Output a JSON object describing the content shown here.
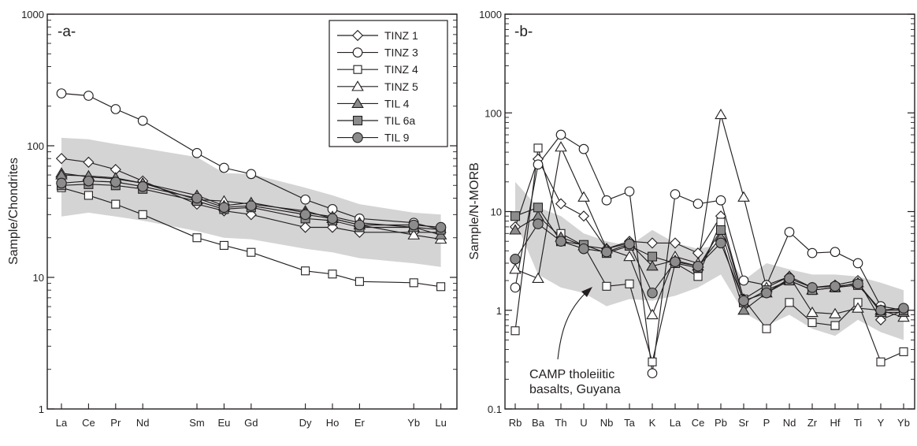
{
  "colors": {
    "band": "#d4d4d4",
    "line": "#231f20",
    "filled": "#8c8c8c",
    "open": "#ffffff"
  },
  "chart_data": [
    {
      "type": "line",
      "panel_label": "-a-",
      "xlabel": "",
      "ylabel": "Sample/Chondrites",
      "y_scale": "log",
      "ylim": [
        1,
        1000
      ],
      "yticks": [
        "1",
        "10",
        "100",
        "1000"
      ],
      "categories": [
        "La",
        "Ce",
        "Pr",
        "Nd",
        "Sm",
        "Eu",
        "Gd",
        "Dy",
        "Ho",
        "Er",
        "Yb",
        "Lu"
      ],
      "category_positions": [
        0,
        1,
        2,
        3,
        5,
        6,
        7,
        9,
        10,
        11,
        13,
        14
      ],
      "legend_placement": "top-right",
      "series": [
        {
          "name": "TINZ 1",
          "marker": "diamond",
          "fill": "open",
          "values": [
            80,
            75,
            66,
            54,
            36,
            32,
            30,
            24,
            24,
            22,
            22,
            22
          ]
        },
        {
          "name": "TINZ 3",
          "marker": "circle",
          "fill": "open",
          "values": [
            250,
            240,
            190,
            155,
            88,
            68,
            61,
            39,
            33,
            28,
            26,
            23
          ]
        },
        {
          "name": "TINZ 4",
          "marker": "square",
          "fill": "open",
          "values": [
            48,
            42,
            36,
            30,
            20,
            17.5,
            15.5,
            11.2,
            10.6,
            9.3,
            9.1,
            8.5
          ]
        },
        {
          "name": "TINZ 5",
          "marker": "triangle",
          "fill": "open",
          "values": [
            62,
            58,
            56,
            52,
            39,
            38,
            36,
            32,
            28,
            25,
            21,
            19.5
          ]
        },
        {
          "name": "TIL 4",
          "marker": "triangle",
          "fill": "filled",
          "values": [
            60,
            59,
            57,
            52,
            42,
            35,
            37,
            31,
            29,
            26,
            24,
            21
          ]
        },
        {
          "name": "TIL 6a",
          "marker": "square",
          "fill": "filled",
          "values": [
            50,
            51,
            50,
            47,
            38,
            33,
            34,
            28,
            27,
            24,
            24,
            23
          ]
        },
        {
          "name": "TIL 9",
          "marker": "circle",
          "fill": "filled",
          "values": [
            52,
            54,
            53,
            49,
            40,
            34,
            35,
            30,
            28,
            25,
            25,
            24
          ]
        }
      ],
      "band": {
        "upper": [
          115,
          112,
          103,
          96,
          82,
          62,
          61,
          48,
          42,
          36,
          31,
          30
        ],
        "lower": [
          29,
          31,
          29,
          27,
          22.5,
          20,
          19.5,
          16.5,
          15.5,
          14,
          12.8,
          12
        ]
      }
    },
    {
      "type": "line",
      "panel_label": "-b-",
      "xlabel": "",
      "ylabel": "Sample/N-MORB",
      "y_scale": "log",
      "ylim": [
        0.1,
        1000
      ],
      "yticks": [
        "0.1",
        "1",
        "10",
        "100",
        "1000"
      ],
      "categories": [
        "Rb",
        "Ba",
        "Th",
        "U",
        "Nb",
        "Ta",
        "K",
        "La",
        "Ce",
        "Pb",
        "Sr",
        "P",
        "Nd",
        "Zr",
        "Hf",
        "Ti",
        "Y",
        "Yb"
      ],
      "category_positions": [
        0,
        1,
        2,
        3,
        4,
        5,
        6,
        7,
        8,
        9,
        10,
        11,
        12,
        13,
        14,
        15,
        16,
        17
      ],
      "annotation": [
        "CAMP tholeiitic",
        "basalts, Guyana"
      ],
      "series": [
        {
          "name": "TINZ 1",
          "marker": "diamond",
          "fill": "open",
          "values": [
            7,
            34,
            12,
            9,
            4.2,
            5,
            4.8,
            4.8,
            3.8,
            9,
            1.3,
            1.8,
            2.2,
            1.7,
            1.8,
            2,
            0.8,
            1
          ]
        },
        {
          "name": "TINZ 3",
          "marker": "circle",
          "fill": "open",
          "values": [
            1.7,
            30,
            60,
            43,
            13,
            16,
            0.23,
            15,
            12,
            13,
            2,
            1.8,
            6.2,
            3.8,
            3.9,
            3,
            1.1,
            1
          ]
        },
        {
          "name": "TINZ 4",
          "marker": "square",
          "fill": "open",
          "values": [
            0.62,
            44,
            6,
            4.5,
            1.75,
            1.85,
            0.3,
            3,
            2.2,
            7.8,
            1.3,
            0.65,
            1.2,
            0.75,
            0.7,
            1.2,
            0.3,
            0.38
          ]
        },
        {
          "name": "TINZ 5",
          "marker": "triangle",
          "fill": "open",
          "values": [
            2.6,
            2.1,
            45,
            14,
            4.2,
            3.5,
            0.9,
            3.5,
            3,
            96,
            14,
            1.7,
            2.2,
            0.95,
            0.92,
            1.05,
            1,
            0.85
          ]
        },
        {
          "name": "TIL 4",
          "marker": "triangle",
          "fill": "filled",
          "values": [
            6.5,
            9,
            5.5,
            4.5,
            4.2,
            4.8,
            2.8,
            3.2,
            2.8,
            5.5,
            1,
            1.5,
            2,
            1.6,
            1.7,
            1.9,
            0.95,
            0.95
          ]
        },
        {
          "name": "TIL 6a",
          "marker": "square",
          "fill": "filled",
          "values": [
            9,
            11,
            5,
            4.6,
            3.8,
            4.5,
            3.5,
            3,
            2.7,
            6.5,
            1.2,
            1.6,
            2,
            1.6,
            1.7,
            1.8,
            1,
            1
          ]
        },
        {
          "name": "TIL 9",
          "marker": "circle",
          "fill": "filled",
          "values": [
            3.3,
            7.5,
            5,
            4.2,
            3.9,
            4.7,
            1.5,
            3.1,
            2.8,
            4.8,
            1.25,
            1.5,
            2.1,
            1.7,
            1.75,
            1.85,
            1,
            1.05
          ]
        }
      ],
      "band": {
        "upper": [
          20,
          11,
          9,
          6,
          5,
          4.5,
          6.5,
          4.8,
          4.2,
          4.6,
          2,
          3,
          2.6,
          2.3,
          2.3,
          2.2,
          1.9,
          1.6
        ],
        "lower": [
          8,
          2.3,
          1.7,
          1.5,
          1.1,
          1.3,
          1.25,
          1.4,
          1.7,
          2.3,
          0.95,
          0.7,
          0.9,
          0.65,
          0.55,
          0.8,
          0.6,
          0.5
        ]
      }
    }
  ]
}
